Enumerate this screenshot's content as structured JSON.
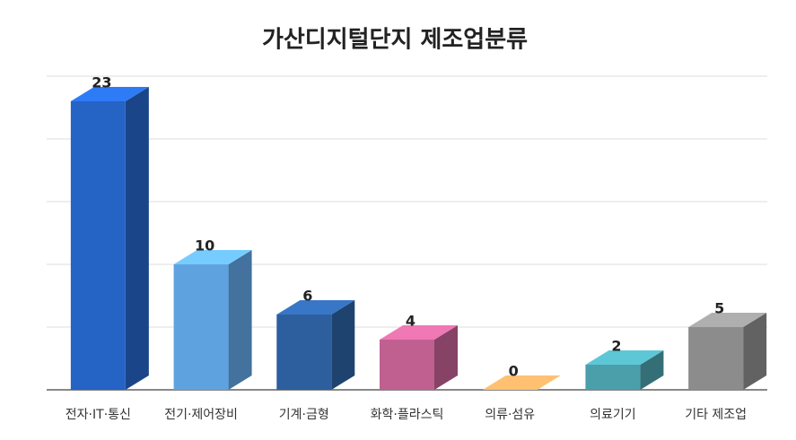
{
  "chart_data": {
    "type": "bar3d",
    "title": "가산디지털단지 제조업분류",
    "categories": [
      "전자·IT·통신",
      "전기·제어장비",
      "기계·금형",
      "화학·플라스틱",
      "의류·섬유",
      "의료기기",
      "기타 제조업"
    ],
    "values": [
      23,
      10,
      6,
      4,
      0,
      2,
      5
    ],
    "colors": [
      "#2563c4",
      "#5ea3e0",
      "#2d5f9f",
      "#c06090",
      "#e59a5a",
      "#4a9fab",
      "#8c8c8c"
    ],
    "ylim": [
      0,
      25
    ],
    "yticks": [
      0,
      5,
      10,
      15,
      20,
      25
    ],
    "grid": true
  }
}
